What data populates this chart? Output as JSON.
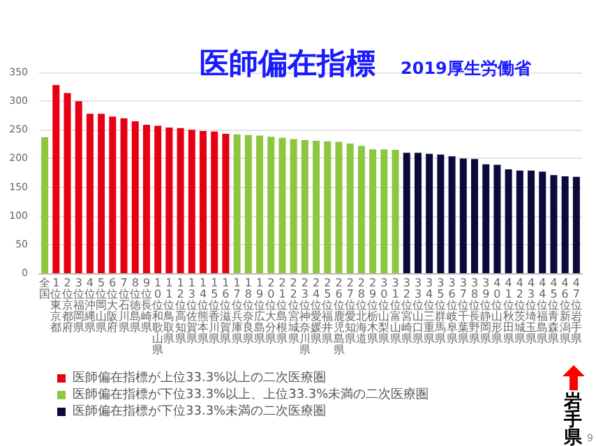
{
  "chart_data": {
    "type": "bar",
    "title": "医師偏在指標",
    "subtitle": "2019厚生労働省",
    "categories": [
      "全国",
      "1位東京都",
      "2位京都府",
      "3位福岡県",
      "4位沖縄県",
      "5位岡山県",
      "6位大阪府",
      "7位石川県",
      "8位徳島県",
      "9位長崎県",
      "10位和歌山県",
      "11位鳥取県",
      "12位高知県",
      "13位佐賀県",
      "14位熊本県",
      "15位香川県",
      "16位滋賀県",
      "17位兵庫県",
      "18位奈良県",
      "19位広島県",
      "20位大分県",
      "21位島根県",
      "22位宮城県",
      "23位神奈川県",
      "24位愛媛県",
      "25位福井県",
      "26位鹿児島県",
      "27位愛知県",
      "28位北海道",
      "29位栃木県",
      "30位山梨県",
      "31位富山県",
      "32位宮崎県",
      "33位山口県",
      "34位三重県",
      "35位群馬県",
      "36位岐阜県",
      "37位千葉県",
      "38位長野県",
      "39位静岡県",
      "40位山形県",
      "41位秋田県",
      "42位茨城県",
      "43位埼玉県",
      "44位福島県",
      "45位青森県",
      "46位新潟県",
      "47位岩手県"
    ],
    "series": [
      {
        "color": "#8dc63f",
        "values": [
          237,
          null,
          null,
          null,
          null,
          null,
          null,
          null,
          null,
          null,
          null,
          null,
          null,
          null,
          null,
          null,
          null,
          null,
          null,
          null,
          null,
          null,
          null,
          null,
          null,
          null,
          null,
          null,
          null,
          null,
          null,
          null,
          null,
          null,
          null,
          null,
          null,
          null,
          null,
          null,
          null,
          null,
          null,
          null,
          null,
          null,
          null,
          null
        ]
      },
      {
        "name": "医師偏在指標が上位33.3%以上の二次医療圏",
        "color": "#e60012",
        "values": [
          null,
          328,
          314,
          300,
          278,
          278,
          273,
          270,
          265,
          259,
          257,
          254,
          253,
          250,
          248,
          247,
          243,
          null,
          null,
          null,
          null,
          null,
          null,
          null,
          null,
          null,
          null,
          null,
          null,
          null,
          null,
          null,
          null,
          null,
          null,
          null,
          null,
          null,
          null,
          null,
          null,
          null,
          null,
          null,
          null,
          null,
          null,
          null
        ]
      },
      {
        "name": "医師偏在指標が下位33.3%以上、上位33.3%未満の二次医療圏",
        "color": "#8dc63f",
        "values": [
          null,
          null,
          null,
          null,
          null,
          null,
          null,
          null,
          null,
          null,
          null,
          null,
          null,
          null,
          null,
          null,
          null,
          242,
          241,
          240,
          238,
          236,
          234,
          232,
          231,
          230,
          229,
          226,
          222,
          216,
          216,
          215,
          null,
          null,
          null,
          null,
          null,
          null,
          null,
          null,
          null,
          null,
          null,
          null,
          null,
          null,
          null,
          null
        ]
      },
      {
        "name": "医師偏在指標が下位33.3%未満の二次医療圏",
        "color": "#0a0a3c",
        "values": [
          null,
          null,
          null,
          null,
          null,
          null,
          null,
          null,
          null,
          null,
          null,
          null,
          null,
          null,
          null,
          null,
          null,
          null,
          null,
          null,
          null,
          null,
          null,
          null,
          null,
          null,
          null,
          null,
          null,
          null,
          null,
          null,
          210,
          210,
          208,
          207,
          204,
          200,
          199,
          190,
          189,
          181,
          179,
          179,
          177,
          171,
          169,
          168
        ]
      }
    ],
    "ylim": [
      0,
      350
    ],
    "yticks": [
      0,
      50,
      100,
      150,
      200,
      250,
      300,
      350
    ],
    "grid": "y",
    "legend": "bottom left",
    "annotations": [
      "岩手県",
      "9"
    ]
  }
}
